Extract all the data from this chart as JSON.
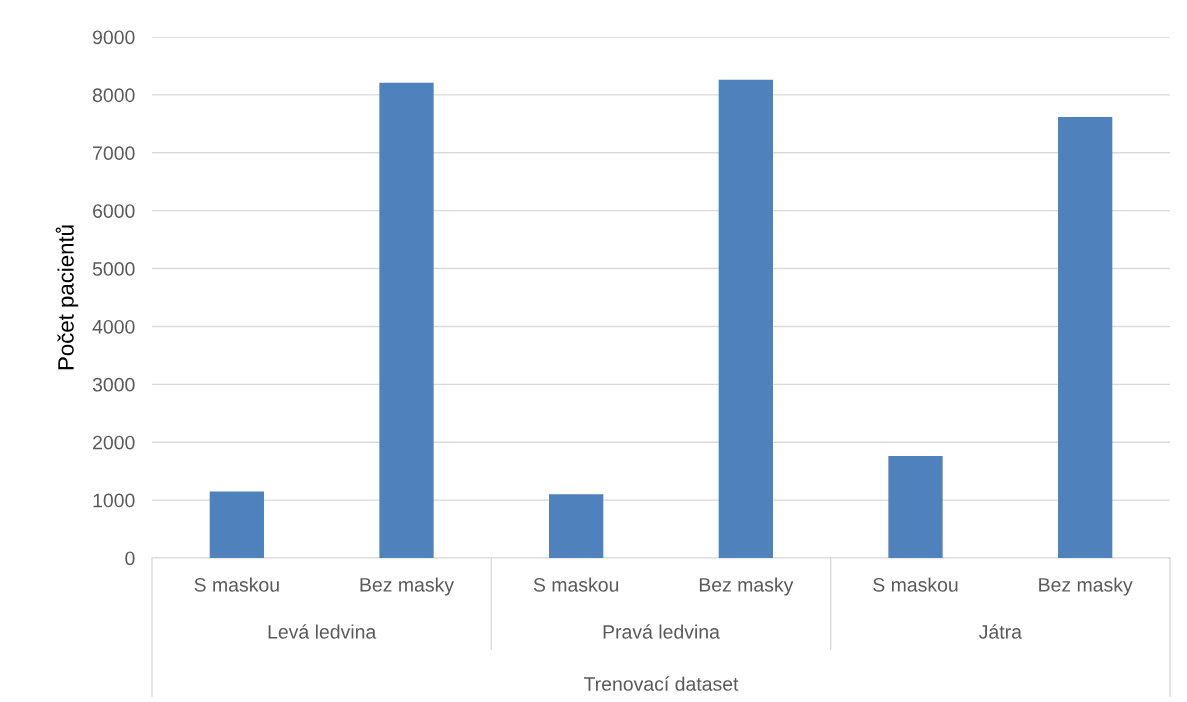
{
  "chart_data": {
    "type": "bar",
    "categories": [
      "S maskou",
      "Bez masky",
      "S maskou",
      "Bez masky",
      "S maskou",
      "Bez masky"
    ],
    "values": [
      1150,
      8210,
      1100,
      8260,
      1760,
      7620
    ],
    "color": "#4f81bd",
    "ylabel": "Počet pacientů",
    "xlabel": "Trenovací dataset",
    "annotations": [
      "Levá ledvina",
      "Pravá ledvina",
      "Játra"
    ],
    "ylim": [
      0,
      9000
    ],
    "yticks": [
      0,
      1000,
      2000,
      3000,
      4000,
      5000,
      6000,
      7000,
      8000,
      9000
    ],
    "grid": "y",
    "legend": false
  }
}
